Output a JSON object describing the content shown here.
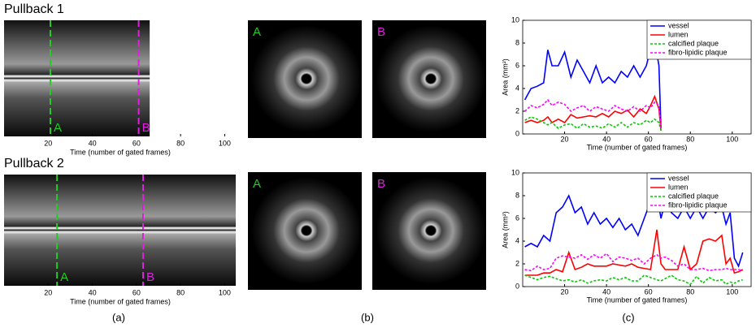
{
  "panel_labels": [
    "(a)",
    "(b)",
    "(c)"
  ],
  "chart_data": [
    {
      "type": "pullback",
      "title": "Pullback 1",
      "frames": 66,
      "xlim": [
        0,
        105
      ],
      "xticks": [
        20,
        40,
        60,
        80,
        100
      ],
      "xlabel": "Time (number of gated frames)",
      "markers": [
        {
          "label": "A",
          "x": 21,
          "color": "#22cc22"
        },
        {
          "label": "B",
          "x": 61,
          "color": "#dd22dd"
        }
      ]
    },
    {
      "type": "pullback",
      "title": "Pullback 2",
      "frames": 105,
      "xlim": [
        0,
        105
      ],
      "xticks": [
        20,
        40,
        60,
        80,
        100
      ],
      "xlabel": "Time (number of gated frames)",
      "markers": [
        {
          "label": "A",
          "x": 24,
          "color": "#22cc22"
        },
        {
          "label": "B",
          "x": 63,
          "color": "#dd22dd"
        }
      ]
    },
    {
      "type": "line",
      "xlabel": "Time (number of gated frames)",
      "ylabel": "Area (mm²)",
      "xlim": [
        0,
        109
      ],
      "ylim": [
        0,
        10
      ],
      "xticks": [
        20,
        40,
        60,
        80,
        100
      ],
      "yticks": [
        0,
        2,
        4,
        6,
        8,
        10
      ],
      "legend": "upper right",
      "x": [
        1,
        4,
        7,
        10,
        12,
        14,
        17,
        20,
        23,
        26,
        29,
        32,
        35,
        38,
        41,
        44,
        47,
        50,
        53,
        56,
        59,
        61,
        63,
        65,
        66
      ],
      "series": [
        {
          "name": "vessel",
          "color": "#0000ff",
          "linestyle": "solid",
          "values": [
            3.0,
            4.0,
            4.2,
            4.5,
            7.4,
            6.0,
            6.0,
            7.2,
            5.0,
            6.5,
            5.5,
            4.5,
            6.0,
            4.5,
            5.0,
            4.5,
            5.5,
            5.0,
            6.0,
            5.0,
            6.0,
            7.5,
            8.2,
            6.0,
            0.5
          ]
        },
        {
          "name": "lumen",
          "color": "#ff0000",
          "linestyle": "solid",
          "values": [
            1.0,
            1.2,
            1.0,
            1.2,
            1.5,
            1.0,
            1.3,
            1.0,
            1.7,
            1.4,
            1.5,
            1.6,
            1.5,
            1.8,
            1.5,
            2.0,
            1.8,
            2.1,
            1.5,
            2.2,
            1.8,
            2.5,
            3.3,
            2.2,
            0.3
          ]
        },
        {
          "name": "calcified plaque",
          "color": "#00cc00",
          "linestyle": "dashed",
          "values": [
            1.2,
            1.5,
            1.3,
            1.0,
            0.8,
            1.0,
            0.5,
            0.8,
            0.9,
            0.5,
            0.9,
            0.6,
            0.7,
            0.5,
            0.9,
            0.6,
            1.0,
            0.6,
            1.0,
            0.8,
            1.2,
            1.0,
            1.3,
            1.0,
            0.3
          ]
        },
        {
          "name": "fibro-lipidic plaque",
          "color": "#ff00ff",
          "linestyle": "dashed",
          "values": [
            2.0,
            2.5,
            2.3,
            2.6,
            3.0,
            2.5,
            2.8,
            2.6,
            2.0,
            2.3,
            2.5,
            2.0,
            2.4,
            2.2,
            2.0,
            2.5,
            2.2,
            2.0,
            2.4,
            2.0,
            2.5,
            2.3,
            2.8,
            2.5,
            0.5
          ]
        }
      ]
    },
    {
      "type": "line",
      "xlabel": "Time (number of gated frames)",
      "ylabel": "Area (mm²)",
      "xlim": [
        0,
        109
      ],
      "ylim": [
        0,
        10
      ],
      "xticks": [
        20,
        40,
        60,
        80,
        100
      ],
      "yticks": [
        0,
        2,
        4,
        6,
        8,
        10
      ],
      "legend": "upper right",
      "x": [
        1,
        4,
        7,
        10,
        13,
        16,
        19,
        22,
        25,
        28,
        31,
        34,
        37,
        40,
        43,
        46,
        49,
        52,
        55,
        58,
        61,
        64,
        66,
        68,
        71,
        74,
        77,
        80,
        83,
        86,
        89,
        92,
        95,
        97,
        99,
        101,
        103,
        105
      ],
      "series": [
        {
          "name": "vessel",
          "color": "#0000ff",
          "linestyle": "solid",
          "values": [
            3.5,
            3.8,
            3.5,
            4.5,
            4.0,
            6.5,
            7.0,
            8.0,
            6.5,
            7.0,
            5.5,
            6.5,
            5.5,
            6.0,
            5.2,
            6.0,
            5.0,
            5.5,
            4.5,
            6.0,
            7.5,
            8.2,
            6.0,
            7.5,
            6.5,
            6.0,
            7.0,
            6.0,
            7.0,
            6.0,
            7.0,
            6.5,
            7.0,
            5.5,
            6.5,
            2.5,
            1.8,
            3.0
          ]
        },
        {
          "name": "lumen",
          "color": "#ff0000",
          "linestyle": "solid",
          "values": [
            1.0,
            1.0,
            1.0,
            1.2,
            1.2,
            1.5,
            1.3,
            3.0,
            1.5,
            1.7,
            2.0,
            1.8,
            1.8,
            1.8,
            2.0,
            1.9,
            1.8,
            2.0,
            1.7,
            1.6,
            1.5,
            5.0,
            2.0,
            1.5,
            1.5,
            1.5,
            3.5,
            1.5,
            2.0,
            4.0,
            4.2,
            4.0,
            4.5,
            2.0,
            2.5,
            1.2,
            1.3,
            1.5
          ]
        },
        {
          "name": "calcified plaque",
          "color": "#00cc00",
          "linestyle": "dashed",
          "values": [
            1.0,
            0.8,
            0.6,
            0.8,
            0.9,
            0.7,
            0.5,
            0.6,
            0.4,
            0.6,
            0.3,
            0.5,
            0.6,
            0.5,
            0.8,
            0.6,
            0.8,
            0.5,
            0.5,
            1.0,
            0.8,
            0.6,
            0.5,
            0.7,
            1.0,
            0.6,
            0.5,
            0.2,
            0.9,
            0.3,
            0.8,
            0.5,
            0.6,
            0.2,
            0.4,
            0.3,
            0.5,
            0.6
          ]
        },
        {
          "name": "fibro-lipidic plaque",
          "color": "#ff00ff",
          "linestyle": "dashed",
          "values": [
            1.5,
            1.4,
            1.8,
            1.5,
            1.6,
            2.5,
            2.7,
            2.6,
            2.5,
            2.8,
            2.4,
            2.8,
            2.5,
            2.9,
            2.2,
            2.6,
            2.5,
            2.3,
            2.5,
            2.0,
            2.5,
            2.8,
            2.5,
            2.6,
            2.3,
            1.8,
            2.0,
            1.5,
            1.5,
            1.6,
            1.4,
            1.5,
            1.5,
            1.6,
            1.5,
            1.5,
            1.5,
            1.4
          ]
        }
      ]
    }
  ]
}
